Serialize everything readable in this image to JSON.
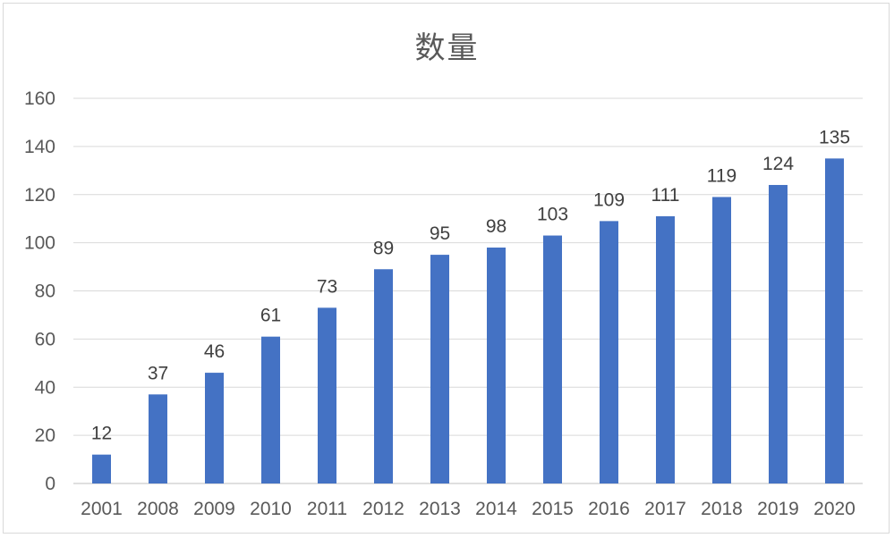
{
  "chart_data": {
    "type": "bar",
    "title": "数量",
    "categories": [
      "2001",
      "2008",
      "2009",
      "2010",
      "2011",
      "2012",
      "2013",
      "2014",
      "2015",
      "2016",
      "2017",
      "2018",
      "2019",
      "2020"
    ],
    "values": [
      12,
      37,
      46,
      61,
      73,
      89,
      95,
      98,
      103,
      109,
      111,
      119,
      124,
      135
    ],
    "data_labels": [
      "12",
      "37",
      "46",
      "61",
      "73",
      "89",
      "95",
      "98",
      "103",
      "109",
      "111",
      "119",
      "124",
      "135"
    ],
    "ylim": [
      0,
      160
    ],
    "yticks": [
      "0",
      "20",
      "40",
      "60",
      "80",
      "100",
      "120",
      "140",
      "160"
    ],
    "grid": true,
    "bar_color": "#4472c4",
    "grid_color": "#d9d9d9",
    "text_color": "#595959"
  }
}
